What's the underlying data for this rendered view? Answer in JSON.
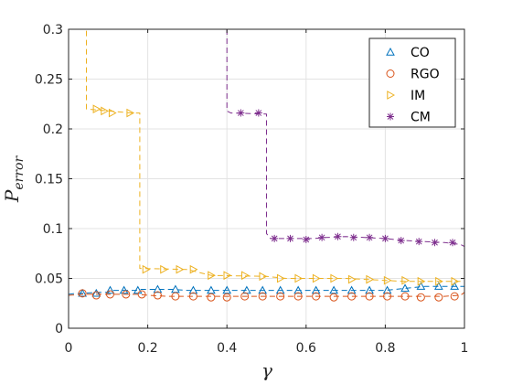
{
  "chart_data": {
    "type": "line",
    "xlabel": "γ",
    "ylabel": "P",
    "ylabel_subscript": "error",
    "xlim": [
      0,
      1
    ],
    "ylim": [
      0,
      0.3
    ],
    "x_ticks": [
      "0",
      "0.2",
      "0.4",
      "0.6",
      "0.8",
      "1"
    ],
    "y_ticks": [
      "0",
      "0.05",
      "0.1",
      "0.15",
      "0.2",
      "0.25",
      "0.3"
    ],
    "grid": true,
    "legend_position": "top-right",
    "series": [
      {
        "name": "CO",
        "color": "#0072BD",
        "marker": "triangle-up",
        "x": [
          0.0,
          0.0175,
          0.035,
          0.07,
          0.1,
          0.105,
          0.14,
          0.175,
          0.18,
          0.22,
          0.26,
          0.3,
          0.35,
          0.4,
          0.45,
          0.5,
          0.55,
          0.6,
          0.65,
          0.7,
          0.75,
          0.8,
          0.85,
          0.9,
          0.95,
          1.0
        ],
        "y": [
          0.034,
          0.035,
          0.035,
          0.036,
          0.036,
          0.038,
          0.038,
          0.038,
          0.039,
          0.039,
          0.039,
          0.038,
          0.038,
          0.038,
          0.038,
          0.038,
          0.038,
          0.038,
          0.038,
          0.038,
          0.038,
          0.038,
          0.04,
          0.042,
          0.042,
          0.042
        ],
        "marker_x": [
          0.035,
          0.07,
          0.105,
          0.14,
          0.175,
          0.225,
          0.27,
          0.315,
          0.36,
          0.4,
          0.45,
          0.49,
          0.535,
          0.58,
          0.625,
          0.67,
          0.715,
          0.76,
          0.805,
          0.85,
          0.89,
          0.935,
          0.975
        ],
        "marker_y": [
          0.035,
          0.035,
          0.038,
          0.038,
          0.038,
          0.039,
          0.039,
          0.038,
          0.038,
          0.038,
          0.038,
          0.038,
          0.038,
          0.038,
          0.038,
          0.038,
          0.038,
          0.038,
          0.038,
          0.04,
          0.042,
          0.042,
          0.042
        ]
      },
      {
        "name": "RGO",
        "color": "#D95319",
        "marker": "circle",
        "x": [
          0.0,
          0.035,
          0.07,
          0.105,
          0.14,
          0.175,
          0.2,
          0.25,
          0.3,
          0.35,
          0.4,
          0.45,
          0.5,
          0.55,
          0.6,
          0.65,
          0.7,
          0.75,
          0.8,
          0.85,
          0.9,
          0.95,
          0.99,
          1.0
        ],
        "y": [
          0.033,
          0.034,
          0.034,
          0.034,
          0.034,
          0.034,
          0.033,
          0.032,
          0.032,
          0.032,
          0.032,
          0.032,
          0.032,
          0.032,
          0.032,
          0.032,
          0.032,
          0.032,
          0.032,
          0.032,
          0.032,
          0.032,
          0.033,
          0.036
        ],
        "marker_x": [
          0.035,
          0.07,
          0.105,
          0.145,
          0.185,
          0.225,
          0.27,
          0.315,
          0.36,
          0.4,
          0.445,
          0.49,
          0.535,
          0.58,
          0.625,
          0.67,
          0.715,
          0.76,
          0.805,
          0.85,
          0.89,
          0.935,
          0.975
        ],
        "marker_y": [
          0.035,
          0.033,
          0.034,
          0.034,
          0.034,
          0.033,
          0.032,
          0.032,
          0.031,
          0.031,
          0.032,
          0.032,
          0.032,
          0.032,
          0.032,
          0.031,
          0.032,
          0.032,
          0.032,
          0.032,
          0.031,
          0.031,
          0.032
        ]
      },
      {
        "name": "IM",
        "color": "#EDB120",
        "marker": "triangle-right",
        "x": [
          0.0,
          0.0,
          0.04,
          0.045,
          0.045,
          0.16,
          0.18,
          0.18,
          0.3,
          0.34,
          0.36,
          0.5,
          0.55,
          0.7,
          0.75,
          0.8,
          0.85,
          0.95,
          1.0,
          1.0
        ],
        "y": [
          0.035,
          0.3,
          0.3,
          0.3,
          0.22,
          0.216,
          0.216,
          0.06,
          0.059,
          0.055,
          0.053,
          0.052,
          0.05,
          0.05,
          0.049,
          0.048,
          0.047,
          0.047,
          0.047,
          0.055
        ],
        "marker_x": [
          0.07,
          0.09,
          0.11,
          0.155,
          0.195,
          0.24,
          0.28,
          0.315,
          0.36,
          0.4,
          0.445,
          0.49,
          0.535,
          0.58,
          0.625,
          0.67,
          0.715,
          0.76,
          0.805,
          0.85,
          0.89,
          0.935,
          0.975
        ],
        "marker_y": [
          0.22,
          0.218,
          0.216,
          0.216,
          0.059,
          0.059,
          0.059,
          0.059,
          0.053,
          0.053,
          0.053,
          0.052,
          0.05,
          0.05,
          0.05,
          0.05,
          0.049,
          0.049,
          0.048,
          0.048,
          0.047,
          0.047,
          0.047
        ]
      },
      {
        "name": "CM",
        "color": "#7E2F8E",
        "marker": "asterisk",
        "x": [
          0.4,
          0.4,
          0.41,
          0.5,
          0.5,
          0.51,
          0.55,
          0.6,
          0.62,
          0.65,
          0.7,
          0.8,
          0.85,
          0.9,
          0.95,
          0.99,
          1.0
        ],
        "y": [
          0.3,
          0.218,
          0.216,
          0.215,
          0.095,
          0.09,
          0.09,
          0.09,
          0.09,
          0.091,
          0.092,
          0.09,
          0.088,
          0.087,
          0.086,
          0.084,
          0.082
        ],
        "marker_x": [
          0.435,
          0.48,
          0.52,
          0.56,
          0.6,
          0.64,
          0.68,
          0.72,
          0.76,
          0.8,
          0.84,
          0.885,
          0.925,
          0.97
        ],
        "marker_y": [
          0.216,
          0.216,
          0.09,
          0.09,
          0.089,
          0.091,
          0.092,
          0.091,
          0.091,
          0.09,
          0.088,
          0.087,
          0.086,
          0.086
        ]
      }
    ]
  }
}
